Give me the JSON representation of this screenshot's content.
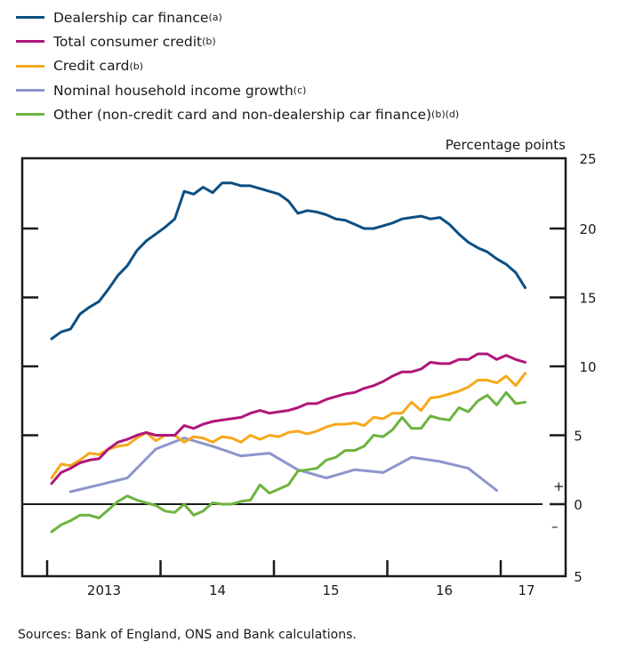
{
  "colors": {
    "dealership": "#0b4f82",
    "total": "#b0157a",
    "card": "#f5a91b",
    "income": "#8d95cc",
    "other": "#6db33f",
    "axis": "#1a1a1a"
  },
  "chart_data": {
    "type": "line",
    "ylabel": "Percentage points",
    "ylim": [
      -5,
      25
    ],
    "yticks": [
      {
        "value": 25,
        "label": "25"
      },
      {
        "value": 20,
        "label": "20"
      },
      {
        "value": 15,
        "label": "15"
      },
      {
        "value": 10,
        "label": "10"
      },
      {
        "value": 5,
        "label": "5"
      },
      {
        "value": 0,
        "label": "0"
      },
      {
        "value": -5,
        "label": "5"
      }
    ],
    "sign_labels": {
      "plus": "+",
      "minus": "–"
    },
    "xticks": [
      {
        "label": "2013",
        "year_start": 2013
      },
      {
        "label": "14",
        "year_start": 2014
      },
      {
        "label": "15",
        "year_start": 2015
      },
      {
        "label": "16",
        "year_start": 2016
      },
      {
        "label": "17",
        "year_start": 2017
      }
    ],
    "x_start": "2013-01",
    "x_frequency": "monthly",
    "grid": false,
    "legend_position": "top-left",
    "series": [
      {
        "key": "dealership",
        "name": "Dealership car finance",
        "sup": "(a)",
        "values": [
          12.0,
          12.5,
          12.7,
          13.8,
          14.3,
          14.7,
          15.6,
          16.6,
          17.3,
          18.4,
          19.1,
          19.6,
          20.1,
          20.7,
          22.7,
          22.5,
          23.0,
          22.6,
          23.3,
          23.3,
          23.1,
          23.1,
          22.9,
          22.7,
          22.5,
          22.0,
          21.1,
          21.3,
          21.2,
          21.0,
          20.7,
          20.6,
          20.3,
          20.0,
          20.0,
          20.2,
          20.4,
          20.7,
          20.8,
          20.9,
          20.7,
          20.8,
          20.3,
          19.6,
          19.0,
          18.6,
          18.3,
          17.8,
          17.4,
          16.8,
          15.7
        ]
      },
      {
        "key": "total",
        "name": "Total consumer credit",
        "sup": "(b)",
        "values": [
          1.5,
          2.3,
          2.6,
          3.0,
          3.2,
          3.3,
          4.0,
          4.5,
          4.7,
          5.0,
          5.2,
          5.0,
          5.0,
          5.0,
          5.7,
          5.5,
          5.8,
          6.0,
          6.1,
          6.2,
          6.3,
          6.6,
          6.8,
          6.6,
          6.7,
          6.8,
          7.0,
          7.3,
          7.3,
          7.6,
          7.8,
          8.0,
          8.1,
          8.4,
          8.6,
          8.9,
          9.3,
          9.6,
          9.6,
          9.8,
          10.3,
          10.2,
          10.2,
          10.5,
          10.5,
          10.9,
          10.9,
          10.5,
          10.8,
          10.5,
          10.3
        ]
      },
      {
        "key": "card",
        "name": "Credit card",
        "sup": "(b)",
        "values": [
          1.9,
          2.9,
          2.8,
          3.2,
          3.7,
          3.6,
          4.0,
          4.2,
          4.3,
          4.8,
          5.2,
          4.6,
          5.0,
          5.0,
          4.5,
          4.9,
          4.8,
          4.5,
          4.9,
          4.8,
          4.5,
          5.0,
          4.7,
          5.0,
          4.9,
          5.2,
          5.3,
          5.1,
          5.3,
          5.6,
          5.8,
          5.8,
          5.9,
          5.7,
          6.3,
          6.2,
          6.6,
          6.6,
          7.4,
          6.8,
          7.7,
          7.8,
          8.0,
          8.2,
          8.5,
          9.0,
          9.0,
          8.8,
          9.3,
          8.6,
          9.5
        ]
      },
      {
        "key": "income",
        "name": "Nominal household income growth",
        "sup": "(c)",
        "month_index": [
          2,
          5,
          8,
          11,
          14,
          17,
          20,
          23,
          26,
          29,
          32,
          35,
          38,
          41,
          44,
          47
        ],
        "values": [
          0.9,
          1.4,
          1.9,
          4.0,
          4.8,
          4.2,
          3.5,
          3.7,
          2.5,
          1.9,
          2.5,
          2.3,
          3.4,
          3.1,
          2.6,
          1.0
        ]
      },
      {
        "key": "other",
        "name": "Other (non-credit card and non-dealership car finance)",
        "sup": "(b)(d)",
        "values": [
          -2.0,
          -1.5,
          -1.2,
          -0.8,
          -0.8,
          -1.0,
          -0.4,
          0.2,
          0.6,
          0.3,
          0.1,
          -0.1,
          -0.5,
          -0.6,
          0.0,
          -0.8,
          -0.5,
          0.1,
          0.0,
          0.0,
          0.2,
          0.3,
          1.4,
          0.8,
          1.1,
          1.4,
          2.4,
          2.5,
          2.6,
          3.2,
          3.4,
          3.9,
          3.9,
          4.2,
          5.0,
          4.9,
          5.4,
          6.3,
          5.5,
          5.5,
          6.4,
          6.2,
          6.1,
          7.0,
          6.7,
          7.5,
          7.9,
          7.2,
          8.1,
          7.3,
          7.4
        ]
      }
    ]
  },
  "source": "Sources:  Bank of England, ONS and Bank calculations."
}
